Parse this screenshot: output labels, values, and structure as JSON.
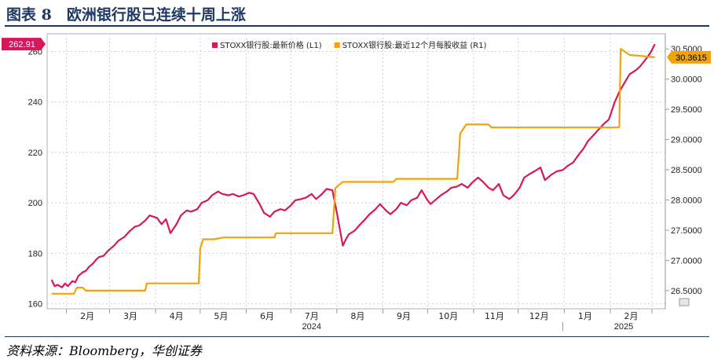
{
  "figure": {
    "title": "图表 8　欧洲银行股已连续十周上涨",
    "source": "资料来源：Bloomberg，华创证券"
  },
  "chart_data": {
    "type": "line",
    "legend_position": "top",
    "grid": true,
    "series": [
      {
        "name": "STOXX银行股:最新价格 (L1)",
        "axis": "left",
        "color": "#d6185b",
        "last_value_label": "262.91",
        "points": [
          [
            "2024-01-22",
            169.5
          ],
          [
            "2024-01-24",
            167.0
          ],
          [
            "2024-01-26",
            167.5
          ],
          [
            "2024-01-29",
            166.5
          ],
          [
            "2024-01-31",
            168.0
          ],
          [
            "2024-02-02",
            167.0
          ],
          [
            "2024-02-05",
            169.0
          ],
          [
            "2024-02-07",
            168.5
          ],
          [
            "2024-02-09",
            171.0
          ],
          [
            "2024-02-12",
            172.5
          ],
          [
            "2024-02-14",
            173.0
          ],
          [
            "2024-02-16",
            174.5
          ],
          [
            "2024-02-19",
            176.0
          ],
          [
            "2024-02-21",
            177.5
          ],
          [
            "2024-02-23",
            178.5
          ],
          [
            "2024-02-26",
            179.0
          ],
          [
            "2024-02-29",
            181.0
          ],
          [
            "2024-03-04",
            183.0
          ],
          [
            "2024-03-07",
            185.0
          ],
          [
            "2024-03-11",
            186.5
          ],
          [
            "2024-03-14",
            188.5
          ],
          [
            "2024-03-18",
            190.5
          ],
          [
            "2024-03-21",
            191.0
          ],
          [
            "2024-03-25",
            193.0
          ],
          [
            "2024-03-28",
            195.0
          ],
          [
            "2024-04-02",
            194.0
          ],
          [
            "2024-04-05",
            191.5
          ],
          [
            "2024-04-08",
            193.5
          ],
          [
            "2024-04-11",
            188.0
          ],
          [
            "2024-04-15",
            191.5
          ],
          [
            "2024-04-18",
            195.0
          ],
          [
            "2024-04-22",
            197.0
          ],
          [
            "2024-04-25",
            196.5
          ],
          [
            "2024-04-29",
            197.5
          ],
          [
            "2024-05-02",
            200.0
          ],
          [
            "2024-05-06",
            201.0
          ],
          [
            "2024-05-09",
            203.0
          ],
          [
            "2024-05-13",
            204.5
          ],
          [
            "2024-05-16",
            203.5
          ],
          [
            "2024-05-20",
            203.0
          ],
          [
            "2024-05-23",
            203.5
          ],
          [
            "2024-05-27",
            202.5
          ],
          [
            "2024-05-30",
            203.0
          ],
          [
            "2024-06-03",
            204.0
          ],
          [
            "2024-06-06",
            203.5
          ],
          [
            "2024-06-10",
            199.5
          ],
          [
            "2024-06-13",
            196.0
          ],
          [
            "2024-06-17",
            194.5
          ],
          [
            "2024-06-20",
            196.5
          ],
          [
            "2024-06-24",
            197.5
          ],
          [
            "2024-06-27",
            197.0
          ],
          [
            "2024-07-01",
            199.0
          ],
          [
            "2024-07-04",
            201.0
          ],
          [
            "2024-07-08",
            201.5
          ],
          [
            "2024-07-11",
            202.0
          ],
          [
            "2024-07-15",
            203.5
          ],
          [
            "2024-07-18",
            201.5
          ],
          [
            "2024-07-22",
            203.5
          ],
          [
            "2024-07-25",
            205.5
          ],
          [
            "2024-07-29",
            205.0
          ],
          [
            "2024-08-01",
            196.0
          ],
          [
            "2024-08-05",
            183.0
          ],
          [
            "2024-08-07",
            185.5
          ],
          [
            "2024-08-09",
            187.5
          ],
          [
            "2024-08-13",
            189.0
          ],
          [
            "2024-08-16",
            191.0
          ],
          [
            "2024-08-20",
            193.5
          ],
          [
            "2024-08-23",
            195.5
          ],
          [
            "2024-08-27",
            197.5
          ],
          [
            "2024-08-30",
            199.5
          ],
          [
            "2024-09-03",
            197.0
          ],
          [
            "2024-09-06",
            195.5
          ],
          [
            "2024-09-10",
            197.5
          ],
          [
            "2024-09-13",
            200.0
          ],
          [
            "2024-09-17",
            199.0
          ],
          [
            "2024-09-20",
            201.0
          ],
          [
            "2024-09-24",
            202.0
          ],
          [
            "2024-09-27",
            205.0
          ],
          [
            "2024-10-01",
            201.0
          ],
          [
            "2024-10-03",
            199.5
          ],
          [
            "2024-10-07",
            201.5
          ],
          [
            "2024-10-10",
            203.0
          ],
          [
            "2024-10-14",
            204.5
          ],
          [
            "2024-10-17",
            206.0
          ],
          [
            "2024-10-21",
            206.5
          ],
          [
            "2024-10-24",
            207.5
          ],
          [
            "2024-10-28",
            206.0
          ],
          [
            "2024-10-31",
            208.0
          ],
          [
            "2024-11-04",
            210.0
          ],
          [
            "2024-11-07",
            208.5
          ],
          [
            "2024-11-11",
            206.0
          ],
          [
            "2024-11-14",
            205.0
          ],
          [
            "2024-11-18",
            207.5
          ],
          [
            "2024-11-21",
            203.0
          ],
          [
            "2024-11-25",
            201.5
          ],
          [
            "2024-11-28",
            203.0
          ],
          [
            "2024-12-02",
            206.0
          ],
          [
            "2024-12-05",
            210.0
          ],
          [
            "2024-12-09",
            211.5
          ],
          [
            "2024-12-12",
            212.5
          ],
          [
            "2024-12-16",
            214.0
          ],
          [
            "2024-12-19",
            209.0
          ],
          [
            "2024-12-23",
            211.0
          ],
          [
            "2024-12-27",
            212.5
          ],
          [
            "2024-12-31",
            213.0
          ],
          [
            "2025-01-03",
            214.5
          ],
          [
            "2025-01-07",
            216.0
          ],
          [
            "2025-01-10",
            218.5
          ],
          [
            "2025-01-14",
            221.5
          ],
          [
            "2025-01-17",
            224.5
          ],
          [
            "2025-01-21",
            227.0
          ],
          [
            "2025-01-24",
            229.0
          ],
          [
            "2025-01-28",
            231.5
          ],
          [
            "2025-01-31",
            233.0
          ],
          [
            "2025-02-04",
            240.0
          ],
          [
            "2025-02-07",
            244.0
          ],
          [
            "2025-02-11",
            248.0
          ],
          [
            "2025-02-14",
            251.0
          ],
          [
            "2025-02-18",
            252.5
          ],
          [
            "2025-02-21",
            254.0
          ],
          [
            "2025-02-25",
            257.0
          ],
          [
            "2025-02-28",
            259.5
          ],
          [
            "2025-03-03",
            262.91
          ]
        ]
      },
      {
        "name": "STOXX银行股:最近12个月每股收益 (R1)",
        "axis": "right",
        "color": "#f0a30a",
        "last_value_label": "30.3615",
        "points": [
          [
            "2024-01-22",
            26.45
          ],
          [
            "2024-02-06",
            26.45
          ],
          [
            "2024-02-08",
            26.55
          ],
          [
            "2024-02-12",
            26.55
          ],
          [
            "2024-02-14",
            26.5
          ],
          [
            "2024-03-25",
            26.5
          ],
          [
            "2024-03-26",
            26.62
          ],
          [
            "2024-04-30",
            26.62
          ],
          [
            "2024-05-01",
            27.2
          ],
          [
            "2024-05-03",
            27.35
          ],
          [
            "2024-05-10",
            27.35
          ],
          [
            "2024-05-17",
            27.38
          ],
          [
            "2024-06-20",
            27.38
          ],
          [
            "2024-06-21",
            27.45
          ],
          [
            "2024-07-29",
            27.45
          ],
          [
            "2024-07-31",
            28.2
          ],
          [
            "2024-08-05",
            28.3
          ],
          [
            "2024-09-08",
            28.3
          ],
          [
            "2024-09-10",
            28.35
          ],
          [
            "2024-10-21",
            28.35
          ],
          [
            "2024-10-23",
            29.1
          ],
          [
            "2024-10-27",
            29.25
          ],
          [
            "2024-11-11",
            29.25
          ],
          [
            "2024-11-13",
            29.2
          ],
          [
            "2025-01-31",
            29.2
          ],
          [
            "2025-02-07",
            29.2
          ],
          [
            "2025-02-08",
            30.5
          ],
          [
            "2025-02-14",
            30.4
          ],
          [
            "2025-03-03",
            30.3615
          ]
        ]
      }
    ],
    "left_axis": {
      "range": [
        158,
        267
      ],
      "ticks": [
        160,
        180,
        200,
        220,
        240,
        260
      ]
    },
    "right_axis": {
      "range": [
        26.2,
        30.75
      ],
      "ticks": [
        "26.5000",
        "27.0000",
        "27.5000",
        "28.0000",
        "28.5000",
        "29.0000",
        "29.5000",
        "30.0000",
        "30.5000"
      ]
    },
    "x_axis": {
      "range": [
        "2024-01-19",
        "2025-03-10"
      ],
      "months": [
        {
          "label": "2月",
          "date": "2024-02-15"
        },
        {
          "label": "3月",
          "date": "2024-03-15"
        },
        {
          "label": "4月",
          "date": "2024-04-15"
        },
        {
          "label": "5月",
          "date": "2024-05-15"
        },
        {
          "label": "6月",
          "date": "2024-06-15"
        },
        {
          "label": "7月",
          "date": "2024-07-15"
        },
        {
          "label": "8月",
          "date": "2024-08-15"
        },
        {
          "label": "9月",
          "date": "2024-09-15"
        },
        {
          "label": "10月",
          "date": "2024-10-15"
        },
        {
          "label": "11月",
          "date": "2024-11-15"
        },
        {
          "label": "12月",
          "date": "2024-12-15"
        },
        {
          "label": "1月",
          "date": "2025-01-15"
        },
        {
          "label": "2月",
          "date": "2025-02-15"
        }
      ],
      "years": [
        {
          "label": "2024",
          "date": "2024-07-15"
        },
        {
          "label": "2025",
          "date": "2025-02-10"
        }
      ],
      "year_divider": "2024-12-31"
    }
  }
}
